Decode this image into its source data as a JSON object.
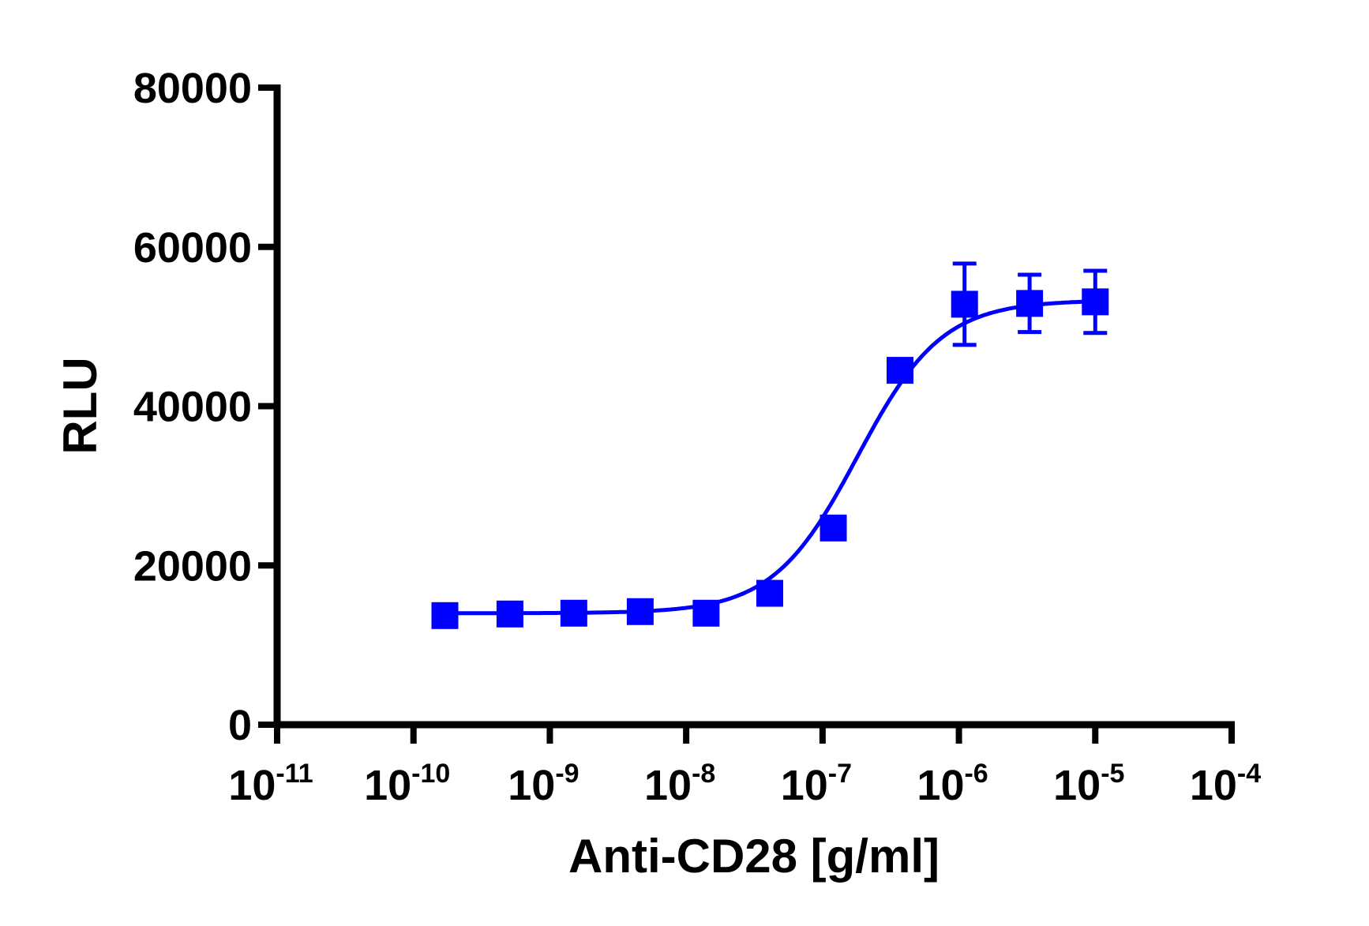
{
  "chart_data": {
    "type": "scatter",
    "title": "",
    "xlabel": "Anti-CD28 [g/ml]",
    "ylabel": "RLU",
    "x_scale": "log",
    "xlim": [
      1e-11,
      0.0001
    ],
    "ylim": [
      0,
      80000
    ],
    "x_ticks": [
      {
        "base": "10",
        "exp": "-11"
      },
      {
        "base": "10",
        "exp": "-10"
      },
      {
        "base": "10",
        "exp": "-9"
      },
      {
        "base": "10",
        "exp": "-8"
      },
      {
        "base": "10",
        "exp": "-7"
      },
      {
        "base": "10",
        "exp": "-6"
      },
      {
        "base": "10",
        "exp": "-5"
      },
      {
        "base": "10",
        "exp": "-4"
      }
    ],
    "y_ticks": [
      "0",
      "20000",
      "40000",
      "60000",
      "80000"
    ],
    "grid": false,
    "color": "#0000ff",
    "series": [
      {
        "marker": "square",
        "x": [
          1.7e-10,
          5.1e-10,
          1.5e-09,
          4.6e-09,
          1.4e-08,
          4.1e-08,
          1.2e-07,
          3.7e-07,
          1.1e-06,
          3.3e-06,
          1e-05
        ],
        "y": [
          13700,
          13900,
          14000,
          14200,
          14000,
          16500,
          24700,
          44500,
          52800,
          52900,
          53100
        ],
        "error": [
          0,
          0,
          0,
          0,
          0,
          0,
          0,
          0,
          5100,
          3600,
          3900
        ]
      }
    ],
    "fit": {
      "model": "sigmoidal dose-response",
      "bottom": 14000,
      "top": 53300,
      "ec50": 1.8e-07,
      "hill": 1.4
    }
  }
}
